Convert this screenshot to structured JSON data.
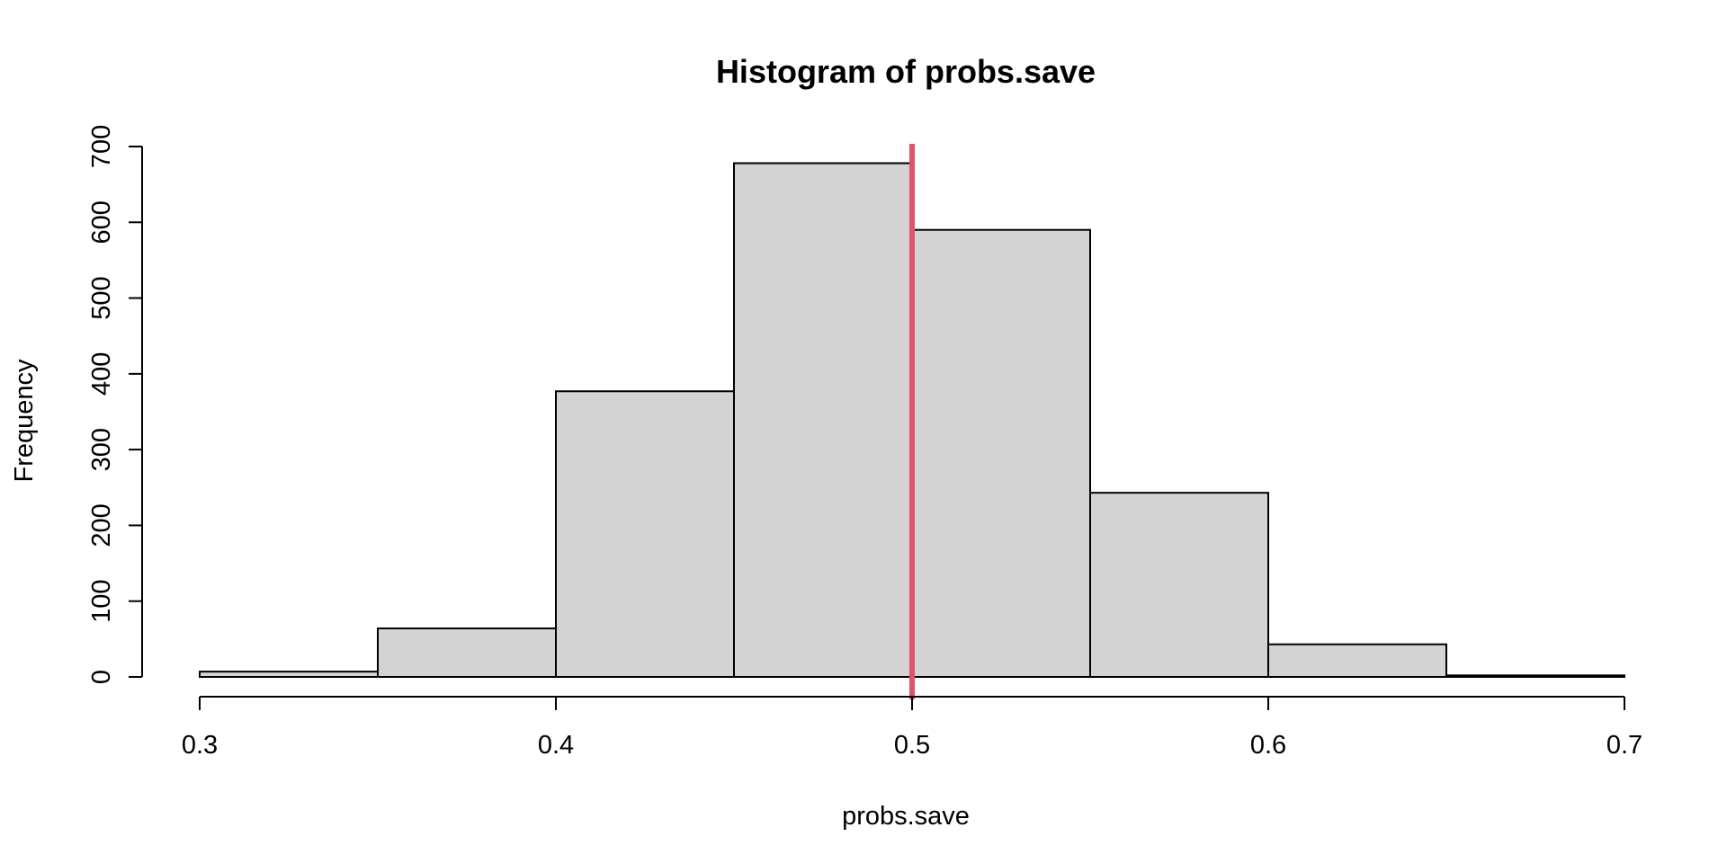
{
  "chart_data": {
    "type": "bar",
    "title": "Histogram of probs.save",
    "xlabel": "probs.save",
    "ylabel": "Frequency",
    "bins": [
      {
        "start": 0.3,
        "end": 0.35,
        "count": 7
      },
      {
        "start": 0.35,
        "end": 0.4,
        "count": 64
      },
      {
        "start": 0.4,
        "end": 0.45,
        "count": 377
      },
      {
        "start": 0.45,
        "end": 0.5,
        "count": 678
      },
      {
        "start": 0.5,
        "end": 0.55,
        "count": 590
      },
      {
        "start": 0.55,
        "end": 0.6,
        "count": 243
      },
      {
        "start": 0.6,
        "end": 0.65,
        "count": 43
      },
      {
        "start": 0.65,
        "end": 0.7,
        "count": 2
      }
    ],
    "xlim": [
      0.3,
      0.7
    ],
    "ylim": [
      0,
      700
    ],
    "x_ticks": [
      "0.3",
      "0.4",
      "0.5",
      "0.6",
      "0.7"
    ],
    "y_ticks": [
      "0",
      "100",
      "200",
      "300",
      "400",
      "500",
      "600",
      "700"
    ],
    "grid": false,
    "legend": "none",
    "reference_line": {
      "x": 0.5,
      "color": "#DF536B"
    },
    "colors": {
      "bar_fill": "#D3D3D3",
      "bar_stroke": "#000000"
    }
  }
}
